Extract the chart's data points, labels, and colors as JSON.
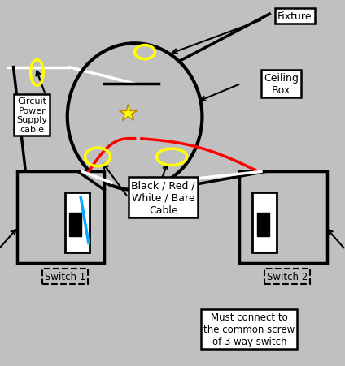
{
  "bg_color": "#c0c0c0",
  "labels": {
    "fixture": "Fixture",
    "ceiling_box": "Ceiling\nBox",
    "circuit_power": "Circuit\nPower\nSupply\ncable",
    "cable_type": "Black / Red /\nWhite / Bare\nCable",
    "switch1": "Switch 1",
    "switch2": "Switch 2",
    "must_connect": "Must connect to\nthe common screw\nof 3 way switch"
  },
  "cc": [
    0.38,
    0.68
  ],
  "cr": 0.2,
  "s1": [
    0.03,
    0.28,
    0.26,
    0.25
  ],
  "s2": [
    0.69,
    0.28,
    0.26,
    0.25
  ]
}
